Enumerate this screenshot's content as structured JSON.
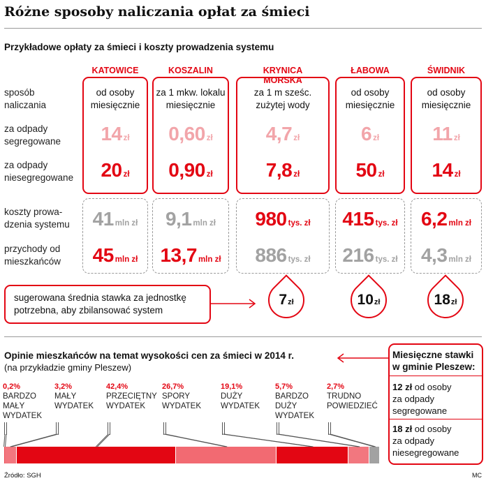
{
  "title": "Różne sposoby naliczania opłat za śmieci",
  "subtitle": "Przykładowe opłaty za śmieci i koszty prowadzenia systemu",
  "row_labels": {
    "method": "sposób\nnaliczania",
    "segregated": "za odpady\nsegregowane",
    "unsegregated": "za odpady\nniesegregowane",
    "costs": "koszty prowa-\ndzenia systemu",
    "revenue": "przychody od\nmieszkańców"
  },
  "cities": [
    {
      "name": "KATOWICE",
      "method": "od osoby\nmiesięcznie",
      "segregated": "14",
      "seg_unit": "zł",
      "unsegregated": "20",
      "unseg_unit": "zł",
      "costs": "41",
      "costs_unit": "mln zł",
      "revenue": "45",
      "revenue_unit": "mln zł",
      "costs_red": false,
      "revenue_red": true
    },
    {
      "name": "KOSZALIN",
      "method": "za 1 mkw. lokalu\nmiesięcznie",
      "segregated": "0,60",
      "seg_unit": "zł",
      "unsegregated": "0,90",
      "unseg_unit": "zł",
      "costs": "9,1",
      "costs_unit": "mln zł",
      "revenue": "13,7",
      "revenue_unit": "mln zł",
      "costs_red": false,
      "revenue_red": true
    },
    {
      "name": "KRYNICA MORSKA",
      "method": "za 1 m sześc.\nzużytej wody",
      "segregated": "4,7",
      "seg_unit": "zł",
      "unsegregated": "7,8",
      "unseg_unit": "zł",
      "costs": "980",
      "costs_unit": "tys. zł",
      "revenue": "886",
      "revenue_unit": "tys. zł",
      "costs_red": true,
      "revenue_red": false
    },
    {
      "name": "ŁABOWA",
      "method": "od osoby\nmiesięcznie",
      "segregated": "6",
      "seg_unit": "zł",
      "unsegregated": "50",
      "unseg_unit": "zł",
      "costs": "415",
      "costs_unit": "tys. zł",
      "revenue": "216",
      "revenue_unit": "tys. zł",
      "costs_red": true,
      "revenue_red": false
    },
    {
      "name": "ŚWIDNIK",
      "method": "od osoby\nmiesięcznie",
      "segregated": "11",
      "seg_unit": "zł",
      "unsegregated": "14",
      "unseg_unit": "zł",
      "costs": "6,2",
      "costs_unit": "mln zł",
      "revenue": "4,3",
      "revenue_unit": "mln zł",
      "costs_red": true,
      "revenue_red": false
    }
  ],
  "suggested": {
    "label": "sugerowana średnia stawka za jednostkę\npotrzebna, aby zbilansować system",
    "values": [
      {
        "city": "KRYNICA MORSKA",
        "value": "7",
        "unit": "zł"
      },
      {
        "city": "ŁABOWA",
        "value": "10",
        "unit": "zł"
      },
      {
        "city": "ŚWIDNIK",
        "value": "18",
        "unit": "zł"
      }
    ]
  },
  "opinions": {
    "title": "Opinie mieszkańców na temat wysokości cen za śmieci w 2014 r.",
    "subtitle": "(na przykładzie gminy Pleszew)"
  },
  "pleszew": {
    "title": "Miesięczne stawki\nw gminie Pleszew:",
    "rates": [
      {
        "amount": "12 zł",
        "text": " od osoby\nza odpady\nsegregowane"
      },
      {
        "amount": "18 zł",
        "text": " od osoby\nza odpady\nniesegregowane"
      }
    ]
  },
  "source": "Źródło: SGH",
  "credit": "MC",
  "colors": {
    "red": "#e30613",
    "pink": "#f2a5aa",
    "gray": "#a2a2a2"
  },
  "chart_data": {
    "type": "bar",
    "title": "Opinie mieszkańców na temat wysokości cen za śmieci w 2014 r.",
    "subtitle": "(na przykładzie gminy Pleszew)",
    "categories": [
      "BARDZO\nMAŁY\nWYDATEK",
      "MAŁY\nWYDATEK",
      "PRZECIĘTNY\nWYDATEK",
      "SPORY\nWYDATEK",
      "DUŻY\nWYDATEK",
      "BARDZO\nDUŻY\nWYDATEK",
      "TRUDNO\nPOWIEDZIEĆ"
    ],
    "values": [
      0.2,
      3.2,
      42.4,
      26.7,
      19.1,
      5.7,
      2.7
    ],
    "labels": [
      "0,2%",
      "3,2%",
      "42,4%",
      "26,7%",
      "19,1%",
      "5,7%",
      "2,7%"
    ],
    "segment_colors": [
      "#ec4b55",
      "#f2777f",
      "#e30613",
      "#f26a72",
      "#e30613",
      "#f2777f",
      "#a2a2a2"
    ],
    "stacked": true
  }
}
